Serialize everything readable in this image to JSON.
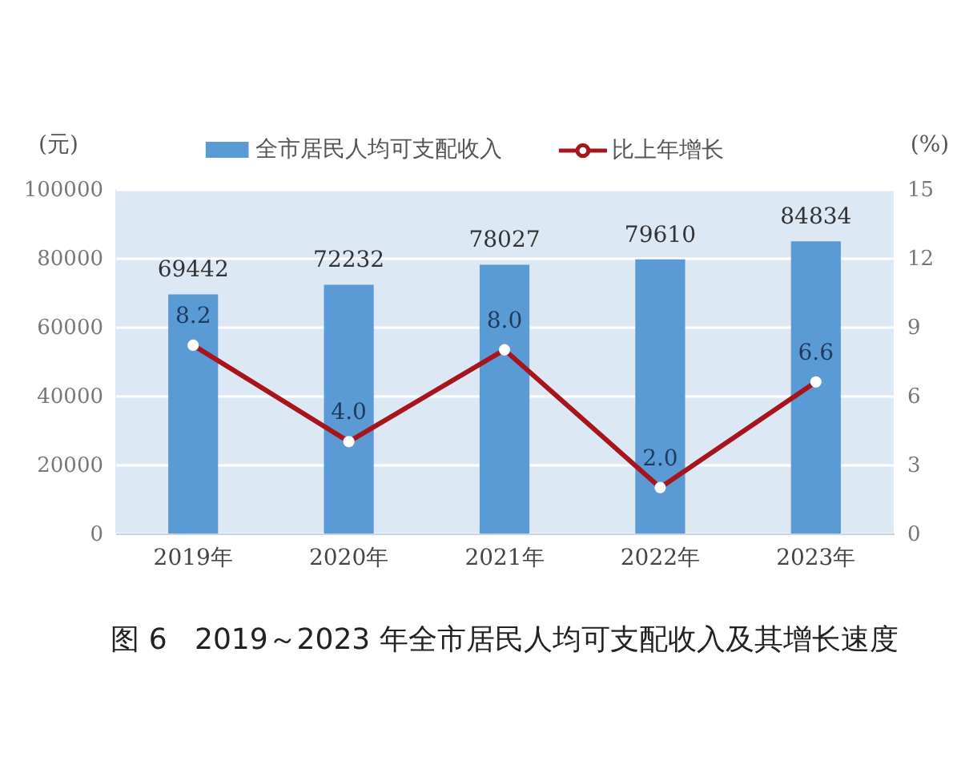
{
  "chart_data": {
    "type": "bar",
    "title": "图 6   2019～2023 年全市居民人均可支配收入及其增长速度",
    "ylabel": "(元)",
    "y2label": "(%)",
    "categories": [
      "2019年",
      "2020年",
      "2021年",
      "2022年",
      "2023年"
    ],
    "series": [
      {
        "name": "全市居民人均可支配收入",
        "color": "#5b9bd5",
        "values": [
          69442,
          72232,
          78027,
          79610,
          84834
        ],
        "value_labels": [
          "69442",
          "72232",
          "78027",
          "79610",
          "84834"
        ]
      },
      {
        "name": "比上年增长",
        "type": "line",
        "axis": "y2",
        "color": "#a8141c",
        "values": [
          8.2,
          4.0,
          8.0,
          2.0,
          6.6
        ],
        "value_labels": [
          "8.2",
          "4.0",
          "8.0",
          "2.0",
          "6.6"
        ]
      }
    ],
    "ylim": [
      0,
      100000
    ],
    "yticks": [
      0,
      20000,
      40000,
      60000,
      80000,
      100000
    ],
    "y2lim": [
      0,
      15
    ],
    "y2ticks": [
      0,
      3,
      6,
      9,
      12,
      15
    ],
    "grid": "y",
    "legend": "top",
    "marker": "circle"
  }
}
